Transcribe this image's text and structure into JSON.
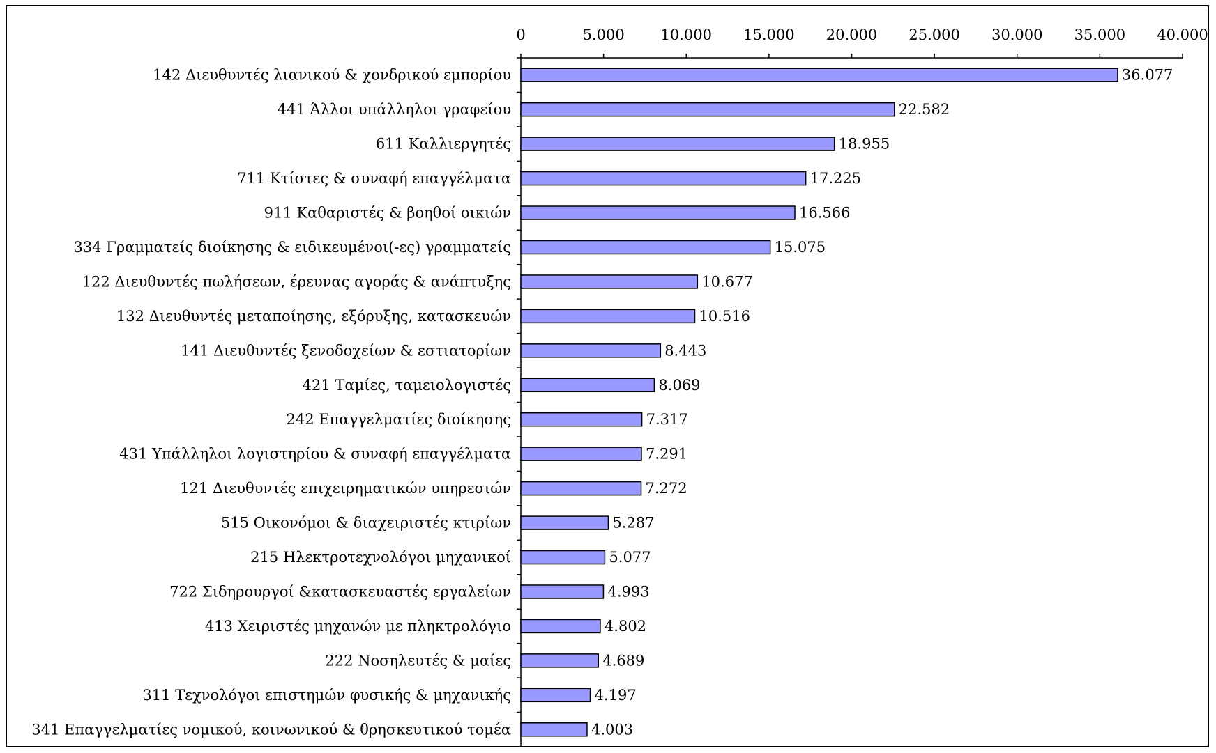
{
  "chart_data": {
    "type": "bar",
    "orientation": "horizontal",
    "categories": [
      "142 Διευθυντές λιανικού & χονδρικού εμπορίου",
      "441 Άλλοι υπάλληλοι γραφείου",
      "611 Καλλιεργητές",
      "711 Κτίστες & συναφή επαγγέλματα",
      "911 Καθαριστές & βοηθοί οικιών",
      "334 Γραμματείς διοίκησης & ειδικευμένοι(-ες) γραμματείς",
      "122 Διευθυντές πωλήσεων, έρευνας αγοράς & ανάπτυξης",
      "132 Διευθυντές μεταποίησης, εξόρυξης, κατασκευών",
      "141 Διευθυντές ξενοδοχείων & εστιατορίων",
      "421 Ταμίες, ταμειολογιστές",
      "242 Επαγγελματίες διοίκησης",
      "431 Υπάλληλοι λογιστηρίου & συναφή επαγγέλματα",
      "121 Διευθυντές επιχειρηματικών υπηρεσιών",
      "515 Οικονόμοι & διαχειριστές κτιρίων",
      "215 Ηλεκτροτεχνολόγοι μηχανικοί",
      "722 Σιδηρουργοί &κατασκευαστές εργαλείων",
      "413 Χειριστές μηχανών με πληκτρολόγιο",
      "222 Νοσηλευτές & μαίες",
      "311 Τεχνολόγοι επιστημών φυσικής & μηχανικής",
      "341 Επαγγελματίες νομικού, κοινωνικού & θρησκευτικού τομέα"
    ],
    "values": [
      36077,
      22582,
      18955,
      17225,
      16566,
      15075,
      10677,
      10516,
      8443,
      8069,
      7317,
      7291,
      7272,
      5287,
      5077,
      4993,
      4802,
      4689,
      4197,
      4003
    ],
    "value_labels": [
      "36.077",
      "22.582",
      "18.955",
      "17.225",
      "16.566",
      "15.075",
      "10.677",
      "10.516",
      "8.443",
      "8.069",
      "7.317",
      "7.291",
      "7.272",
      "5.287",
      "5.077",
      "4.993",
      "4.802",
      "4.689",
      "4.197",
      "4.003"
    ],
    "xlim": [
      0,
      40000
    ],
    "x_ticks": [
      0,
      5000,
      10000,
      15000,
      20000,
      25000,
      30000,
      35000,
      40000
    ],
    "x_tick_labels": [
      "0",
      "5.000",
      "10.000",
      "15.000",
      "20.000",
      "25.000",
      "30.000",
      "35.000",
      "40.000"
    ],
    "x_axis_position": "top",
    "grid": false,
    "legend": "none",
    "title": "",
    "xlabel": "",
    "ylabel": "",
    "colors": {
      "bar_fill": "#9999ff",
      "bar_stroke": "#000000",
      "axis": "#000000"
    }
  }
}
